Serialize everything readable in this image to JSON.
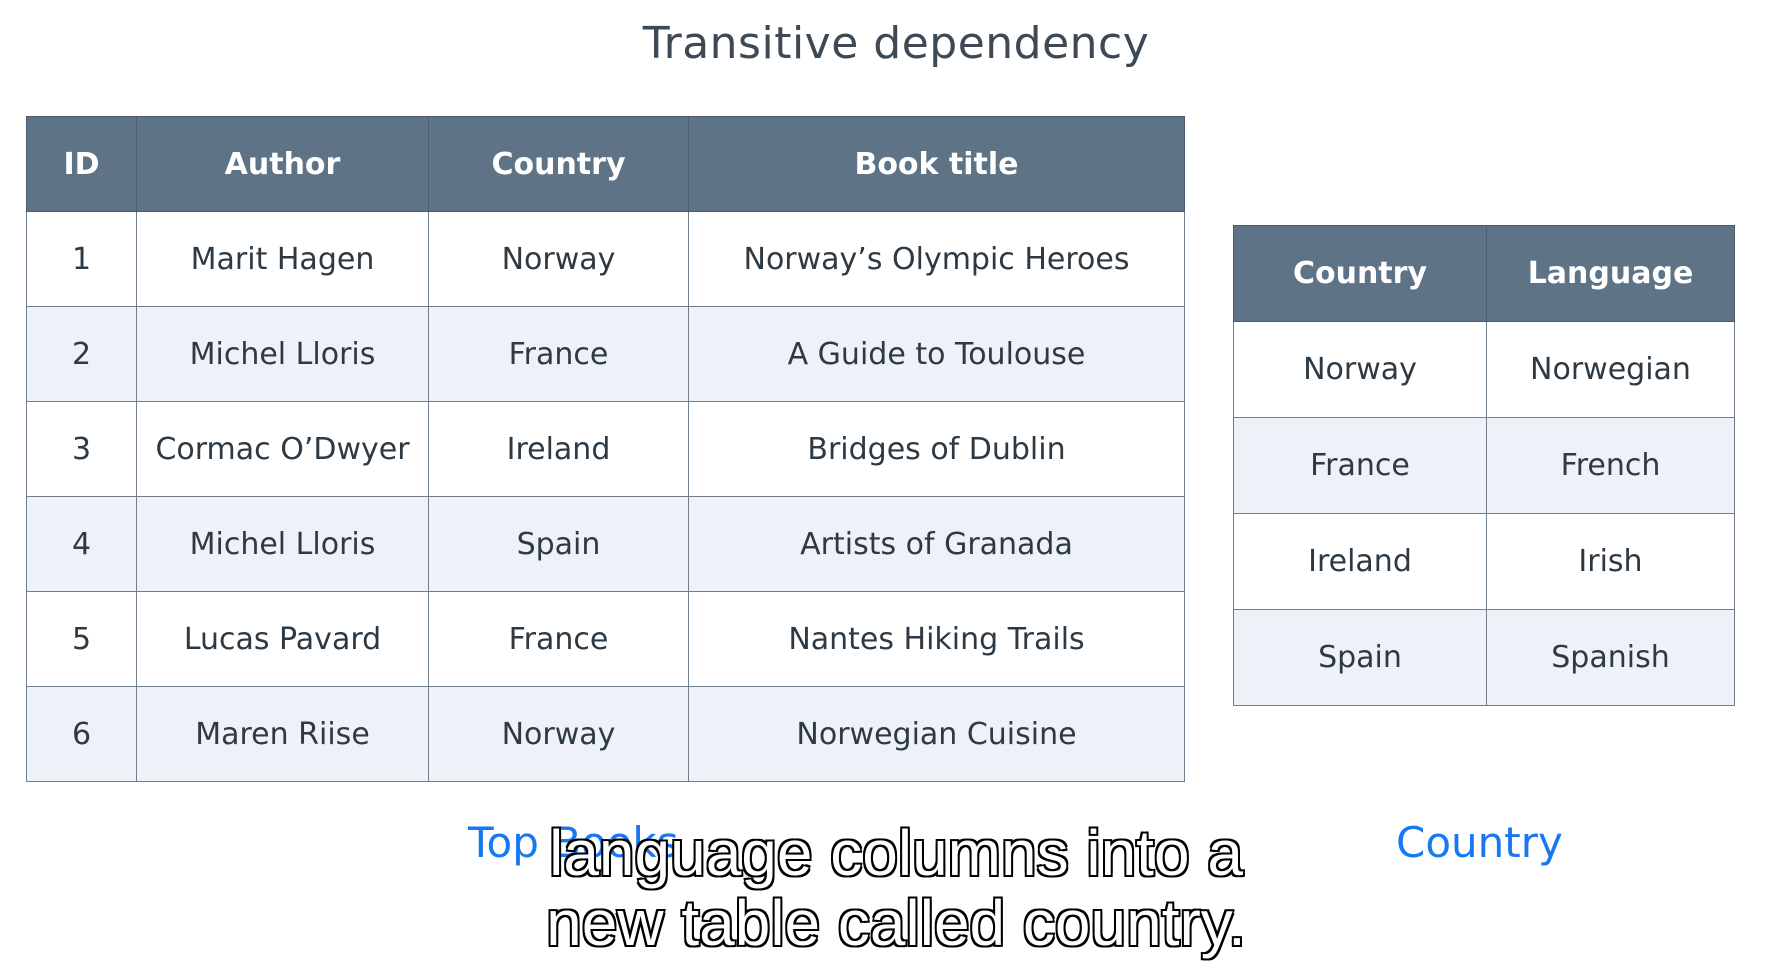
{
  "title": "Transitive dependency",
  "books_table": {
    "headers": [
      "ID",
      "Author",
      "Country",
      "Book title"
    ],
    "rows": [
      [
        "1",
        "Marit Hagen",
        "Norway",
        "Norway’s Olympic Heroes"
      ],
      [
        "2",
        "Michel Lloris",
        "France",
        "A Guide to Toulouse"
      ],
      [
        "3",
        "Cormac O’Dwyer",
        "Ireland",
        "Bridges of Dublin"
      ],
      [
        "4",
        "Michel Lloris",
        "Spain",
        "Artists of Granada"
      ],
      [
        "5",
        "Lucas Pavard",
        "France",
        "Nantes Hiking Trails"
      ],
      [
        "6",
        "Maren Riise",
        "Norway",
        "Norwegian Cuisine"
      ]
    ],
    "caption": "Top Books"
  },
  "country_table": {
    "headers": [
      "Country",
      "Language"
    ],
    "rows": [
      [
        "Norway",
        "Norwegian"
      ],
      [
        "France",
        "French"
      ],
      [
        "Ireland",
        "Irish"
      ],
      [
        "Spain",
        "Spanish"
      ]
    ],
    "caption": "Country"
  },
  "subtitle": {
    "line1": "language columns into a",
    "line2": "new table called country."
  },
  "colors": {
    "header_bg": "#5f7387",
    "alt_row_bg": "#eef2f8",
    "caption": "#1877f2"
  }
}
